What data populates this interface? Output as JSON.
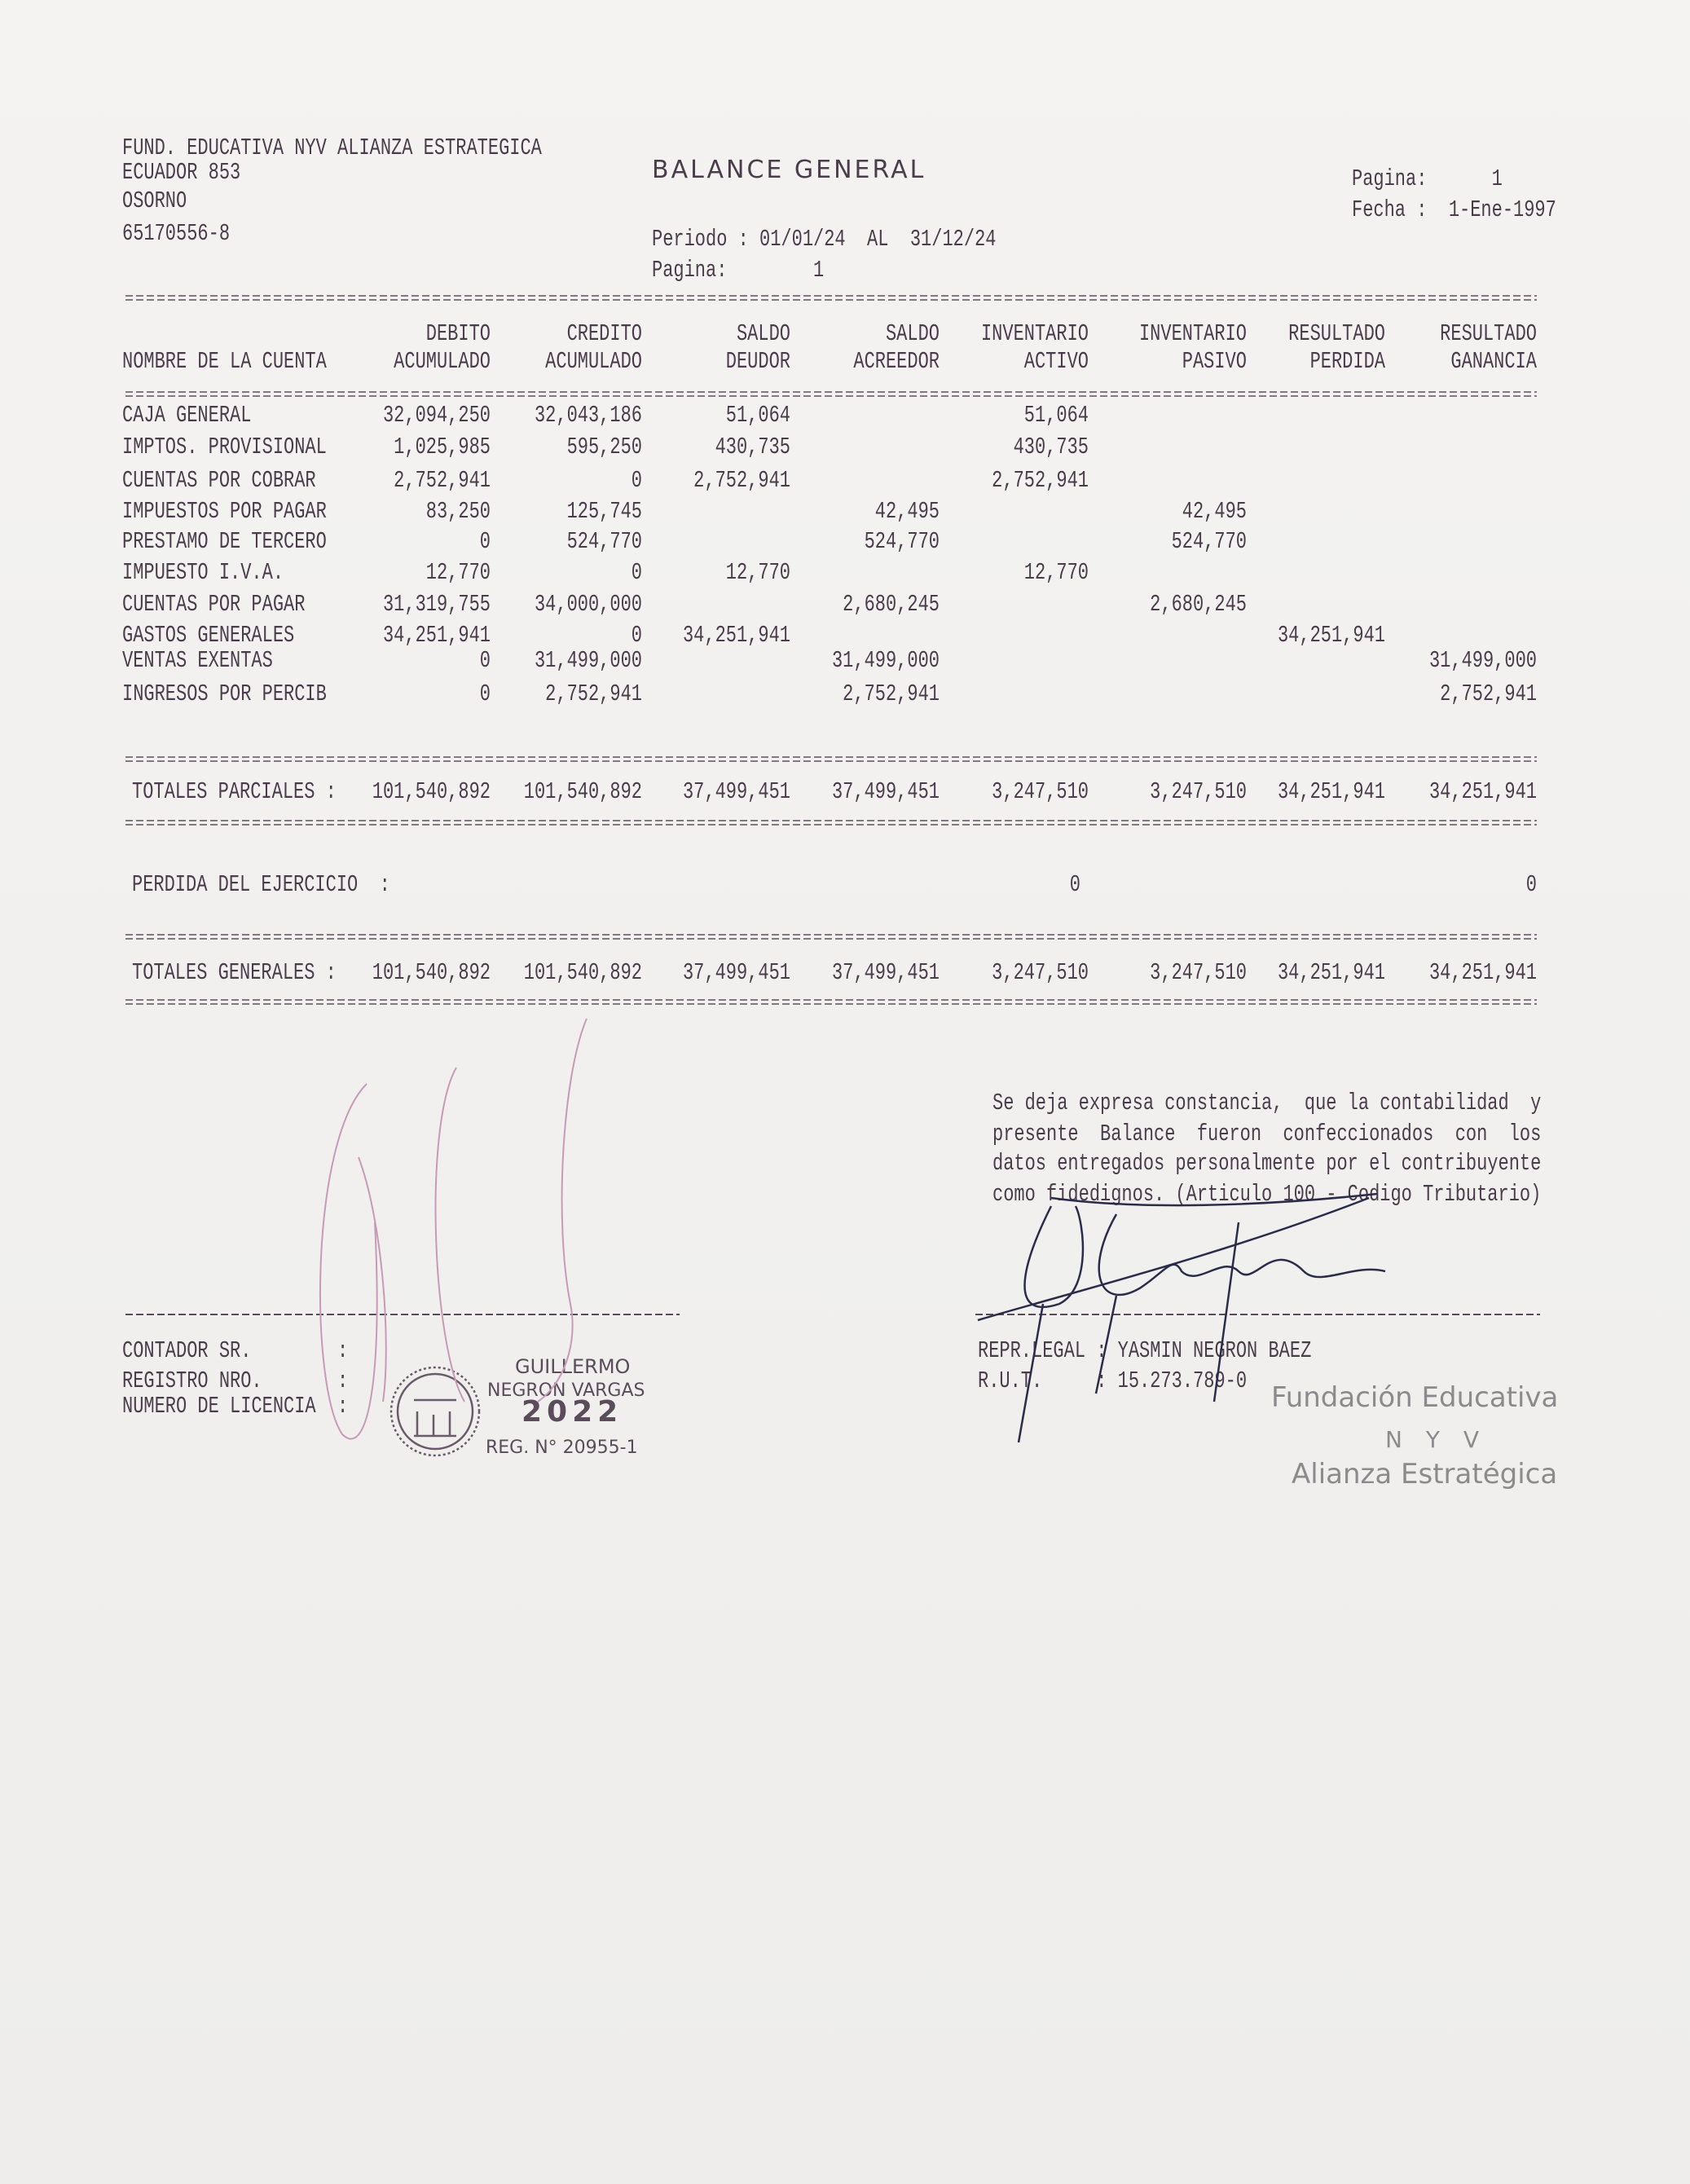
{
  "header": {
    "company": [
      "FUND. EDUCATIVA NYV ALIANZA ESTRATEGICA",
      "ECUADOR 853",
      "OSORNO",
      "65170556-8"
    ],
    "title": "BALANCE GENERAL",
    "periodo": "Periodo : 01/01/24  AL  31/12/24",
    "pagina_center": "Pagina:        1",
    "pagina_right": "Pagina:      1",
    "fecha": "Fecha :  1-Ene-1997"
  },
  "table": {
    "columns": [
      {
        "l1": "",
        "l2": "NOMBRE DE LA CUENTA"
      },
      {
        "l1": "DEBITO",
        "l2": "ACUMULADO"
      },
      {
        "l1": "CREDITO",
        "l2": "ACUMULADO"
      },
      {
        "l1": "SALDO",
        "l2": "DEUDOR"
      },
      {
        "l1": "SALDO",
        "l2": "ACREEDOR"
      },
      {
        "l1": "INVENTARIO",
        "l2": "ACTIVO"
      },
      {
        "l1": "INVENTARIO",
        "l2": "PASIVO"
      },
      {
        "l1": "RESULTADO",
        "l2": "PERDIDA"
      },
      {
        "l1": "RESULTADO",
        "l2": "GANANCIA"
      }
    ],
    "rows": [
      [
        "CAJA GENERAL",
        "32,094,250",
        "32,043,186",
        "51,064",
        "",
        "51,064",
        "",
        "",
        ""
      ],
      [
        "IMPTOS. PROVISIONAL",
        "1,025,985",
        "595,250",
        "430,735",
        "",
        "430,735",
        "",
        "",
        ""
      ],
      [
        "CUENTAS POR COBRAR",
        "2,752,941",
        "0",
        "2,752,941",
        "",
        "2,752,941",
        "",
        "",
        ""
      ],
      [
        "IMPUESTOS POR PAGAR",
        "83,250",
        "125,745",
        "",
        "42,495",
        "",
        "42,495",
        "",
        ""
      ],
      [
        "PRESTAMO DE TERCERO",
        "0",
        "524,770",
        "",
        "524,770",
        "",
        "524,770",
        "",
        ""
      ],
      [
        "IMPUESTO I.V.A.",
        "12,770",
        "0",
        "12,770",
        "",
        "12,770",
        "",
        "",
        ""
      ],
      [
        "CUENTAS POR PAGAR",
        "31,319,755",
        "34,000,000",
        "",
        "2,680,245",
        "",
        "2,680,245",
        "",
        ""
      ],
      [
        "GASTOS GENERALES",
        "34,251,941",
        "0",
        "34,251,941",
        "",
        "",
        "",
        "34,251,941",
        ""
      ],
      [
        "VENTAS EXENTAS",
        "0",
        "31,499,000",
        "",
        "31,499,000",
        "",
        "",
        "",
        "31,499,000"
      ],
      [
        "INGRESOS POR PERCIB",
        "0",
        "2,752,941",
        "",
        "2,752,941",
        "",
        "",
        "",
        "2,752,941"
      ]
    ],
    "totales_parciales": [
      "TOTALES PARCIALES :",
      "101,540,892",
      "101,540,892",
      "37,499,451",
      "37,499,451",
      "3,247,510",
      "3,247,510",
      "34,251,941",
      "34,251,941"
    ],
    "perdida": [
      "PERDIDA DEL EJERCICIO  :",
      "",
      "",
      "",
      "",
      "0",
      "",
      "",
      "0"
    ],
    "totales_generales": [
      "TOTALES GENERALES :",
      "101,540,892",
      "101,540,892",
      "37,499,451",
      "37,499,451",
      "3,247,510",
      "3,247,510",
      "34,251,941",
      "34,251,941"
    ]
  },
  "statement": [
    "Se deja expresa constancia,  que la contabilidad  y",
    "presente  Balance  fueron  confeccionados  con  los",
    "datos entregados personalmente por el contribuyente",
    "como fidedignos. (Articulo 100 - Codigo Tributario)"
  ],
  "contador": [
    "CONTADOR SR.        :",
    "REGISTRO NRO.       :",
    "NUMERO DE LICENCIA  :"
  ],
  "repr": [
    "REPR.LEGAL : YASMIN NEGRON BAEZ",
    "R.U.T.     : 15.273.789-0"
  ],
  "stamp": {
    "name1": "GUILLERMO",
    "name2": "NEGRON VARGAS",
    "year": "2022",
    "reg": "REG. N° 20955-1"
  },
  "org_stamp": [
    "Fundación Educativa",
    "N Y V",
    "Alianza Estratégica"
  ],
  "colors": {
    "ink": "#4b3c4b",
    "signature_left": "#c79ab8",
    "signature_right": "#2a2c4a",
    "org_stamp": "#8c8a8c"
  }
}
